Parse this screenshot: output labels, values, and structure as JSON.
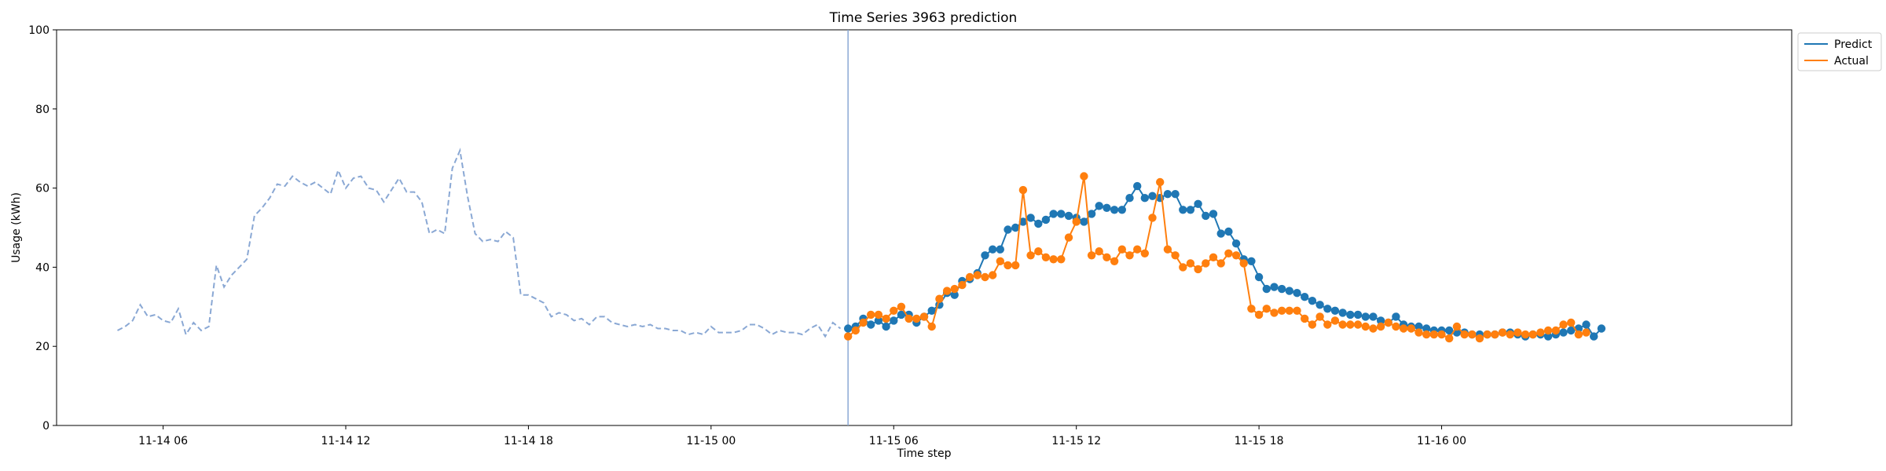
{
  "chart_data": {
    "type": "line",
    "title": "Time Series 3963 prediction",
    "xlabel": "Time step",
    "ylabel": "Usage (kWh)",
    "ylim": [
      0,
      100
    ],
    "yticks": [
      0,
      20,
      40,
      60,
      80,
      100
    ],
    "xlim": [
      -8,
      220
    ],
    "xticks": [
      {
        "x": 6,
        "label": "11-14 06"
      },
      {
        "x": 30,
        "label": "11-14 12"
      },
      {
        "x": 54,
        "label": "11-14 18"
      },
      {
        "x": 78,
        "label": "11-15 00"
      },
      {
        "x": 102,
        "label": "11-15 06"
      },
      {
        "x": 126,
        "label": "11-15 12"
      },
      {
        "x": 150,
        "label": "11-15 18"
      },
      {
        "x": 174,
        "label": "11-16 00"
      }
    ],
    "x_start": 0,
    "forecast_start": 96,
    "grid": false,
    "legend_position": "upper-right-outside",
    "colors": {
      "history": "#8aa8d4",
      "predict": "#1f77b4",
      "actual": "#ff7f0e",
      "divider": "#8aa8d4"
    },
    "history": [
      24,
      25,
      26.5,
      30.5,
      27.5,
      28,
      26.5,
      26,
      29.5,
      23,
      26,
      24,
      25,
      40.5,
      35,
      38,
      40,
      42,
      53,
      55,
      57.5,
      61,
      60.5,
      63,
      61.5,
      60.5,
      61.5,
      60,
      58.5,
      64.5,
      60,
      62.5,
      63,
      60,
      59.5,
      56.5,
      59.5,
      62.5,
      59,
      59,
      56.5,
      48.5,
      49.5,
      48.5,
      65,
      69.5,
      58,
      48.5,
      46.5,
      47,
      46.5,
      49,
      47.5,
      33,
      33,
      32,
      31,
      27.5,
      28.5,
      28,
      26.5,
      27,
      25.5,
      27.5,
      27.5,
      26,
      25.5,
      25,
      25.5,
      25,
      25.5,
      24.5,
      24.5,
      24,
      24,
      23,
      23.5,
      23,
      25,
      23.5,
      23.5,
      23.5,
      24,
      25.5,
      25.5,
      24.5,
      23,
      24,
      23.5,
      23.5,
      23,
      24.5,
      25.5,
      22.5,
      26,
      24.5
    ],
    "series": [
      {
        "name": "Predict",
        "values": [
          24.5,
          25,
          27,
          25.5,
          26.5,
          25,
          26.5,
          28,
          28,
          26,
          27.5,
          29,
          30.5,
          33.5,
          33,
          36.5,
          37,
          38.5,
          43,
          44.5,
          44.5,
          49.5,
          50,
          51.5,
          52.5,
          51,
          52,
          53.5,
          53.5,
          53,
          52.5,
          51.5,
          53.5,
          55.5,
          55,
          54.5,
          54.5,
          57.5,
          60.5,
          57.5,
          58,
          57.5,
          58.5,
          58.5,
          54.5,
          54.5,
          56,
          53,
          53.5,
          48.5,
          49,
          46,
          42,
          41.5,
          37.5,
          34.5,
          35,
          34.5,
          34,
          33.5,
          32.5,
          31.5,
          30.5,
          29.5,
          29,
          28.5,
          28,
          28,
          27.5,
          27.5,
          26.5,
          26,
          27.5,
          25.5,
          25,
          25,
          24.5,
          24,
          24,
          24,
          23.5,
          23.5,
          23,
          23,
          23,
          23,
          23.5,
          23.5,
          23,
          22.5,
          23,
          23,
          22.5,
          23,
          23.5,
          24,
          24.5,
          25.5,
          22.5,
          24.5
        ]
      },
      {
        "name": "Actual",
        "values": [
          22.5,
          24,
          26,
          28,
          28,
          27,
          29,
          30,
          27,
          27,
          27.5,
          25,
          32,
          34,
          34.5,
          35.5,
          37.5,
          38,
          37.5,
          38,
          41.5,
          40.5,
          40.5,
          59.5,
          43,
          44,
          42.5,
          42,
          42,
          47.5,
          51.5,
          63,
          43,
          44,
          42.5,
          41.5,
          44.5,
          43,
          44.5,
          43.5,
          52.5,
          61.5,
          44.5,
          43,
          40,
          41,
          39.5,
          41,
          42.5,
          41,
          43.5,
          43,
          41,
          29.5,
          28,
          29.5,
          28.5,
          29,
          29,
          29,
          27,
          25.5,
          27.5,
          25.5,
          26.5,
          25.5,
          25.5,
          25.5,
          25,
          24.5,
          25,
          26,
          25,
          24.5,
          24.5,
          23.5,
          23,
          23,
          23,
          22,
          25,
          23,
          23,
          22,
          23,
          23,
          23.5,
          23,
          23.5,
          23,
          23,
          23.5,
          24,
          24,
          25.5,
          26,
          23,
          23.5
        ]
      }
    ]
  }
}
